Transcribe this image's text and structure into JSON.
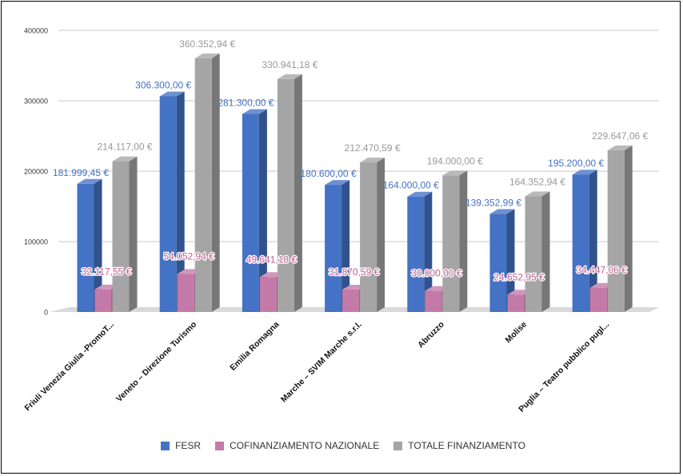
{
  "chart_data": {
    "type": "bar",
    "title": "",
    "xlabel": "",
    "ylabel": "",
    "ylim": [
      0,
      400000
    ],
    "y_ticks": [
      "0",
      "100000",
      "200000",
      "300000",
      "400000"
    ],
    "grid": true,
    "legend_position": "bottom",
    "render_style": "3d-clustered-columns",
    "categories": [
      "Friuli Venezia Giulia -PromoT...",
      "Veneto – Direzione Turismo",
      "Emilia Romagna",
      "Marche – SVIM Marche s.r.l.",
      "Abruzzo",
      "Molise",
      "Puglia – Teatro pubblico pugl..."
    ],
    "series": [
      {
        "name": "FESR",
        "color": "#4472c4",
        "label_color": "#4472c4",
        "values": [
          181999.45,
          306300.0,
          281300.0,
          180600.0,
          164000.0,
          139352.99,
          195200.0
        ],
        "labels": [
          "181.999,45 €",
          "306.300,00 €",
          "281.300,00 €",
          "180.600,00 €",
          "164.000,00 €",
          "139.352,99 €",
          "195.200,00 €"
        ]
      },
      {
        "name": "COFINANZIAMENTO NAZIONALE",
        "color": "#c47aa8",
        "label_color": "#c0608e",
        "values": [
          32117.55,
          54052.94,
          49641.18,
          31870.59,
          30000.0,
          24652.95,
          34447.06
        ],
        "labels": [
          "32.117,55 €",
          "54.052,94 €",
          "49.641,18 €",
          "31.870,59 €",
          "30.000,00 €",
          "24.652,95 €",
          "34.447,06 €"
        ]
      },
      {
        "name": "TOTALE FINANZIAMENTO",
        "color": "#a5a5a5",
        "label_color": "#999999",
        "values": [
          214117.0,
          360352.94,
          330941.18,
          212470.59,
          194000.0,
          164352.94,
          229647.06
        ],
        "labels": [
          "214.117,00 €",
          "360.352,94 €",
          "330.941,18 €",
          "212.470,59 €",
          "194.000,00 €",
          "164.352,94 €",
          "229.647,06 €"
        ]
      }
    ]
  }
}
